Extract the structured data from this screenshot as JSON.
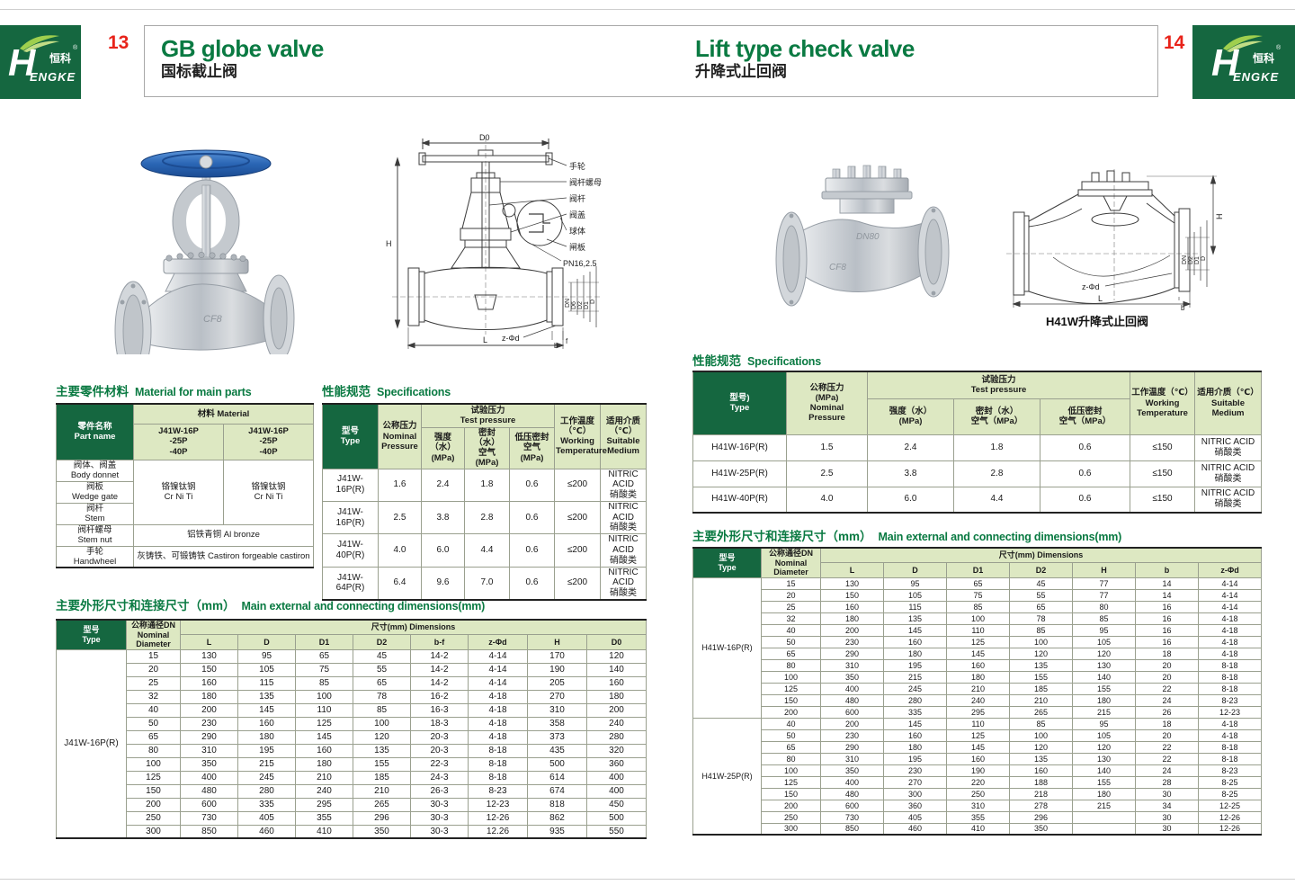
{
  "brand": {
    "h": "H",
    "rest": "ENGKE",
    "cn": "恒科",
    "reg": "®"
  },
  "header": {
    "left_page_no": "13",
    "left_title_en": "GB globe valve",
    "left_title_zh": "国标截止阀",
    "right_page_no": "14",
    "right_title_en": "Lift type check valve",
    "right_title_zh": "升降式止回阀"
  },
  "left_page": {
    "photo_mark": "CF8",
    "diagram": {
      "d0": "D0",
      "h": "H",
      "labels": [
        "手轮",
        "阀杆螺母",
        "阀杆",
        "阀盖",
        "球体",
        "闸板",
        "PN16,2.5"
      ],
      "flange_dims": [
        "DN",
        "D6",
        "D2",
        "D1",
        "D"
      ],
      "z_phi_d": "z-Φd",
      "l": "L",
      "b": "b",
      "f": "f"
    },
    "material_table": {
      "title_zh": "主要零件材料",
      "title_en": "Material for main parts",
      "part_header": "零件名称\nPart name",
      "material_header": "材料 Material",
      "model_cols": [
        "J41W-16P\n-25P\n-40P",
        "J41W-16P\n-25P\n-40P"
      ],
      "rows": [
        "阀体、阀盖\nBody donnet",
        "阀板\nWedge gate",
        "阀杆\nStem",
        "阀杆螺母\nStem nut",
        "手轮\nHandwheel"
      ],
      "material_cols": [
        "铬镍钛钢\nCr Ni Ti",
        "铬镍钛钢\nCr Ni Ti"
      ],
      "stem_nut_material": "铝铁青铜 Al bronze",
      "handwheel_material": "灰铸铁、可锻铸铁 Castiron forgeable castiron"
    },
    "spec_table": {
      "title_zh": "性能规范",
      "title_en": "Specifications",
      "h_type": "型号\nType",
      "h_nominal": "公称压力\nNominal\nPressure",
      "h_test": "试验压力\nTest pressure",
      "h_strength": "强度（水）\n(MPa)",
      "h_seal": "密封（水）\n空气 (MPa)",
      "h_low": "低压密封\n空气 (MPa)",
      "h_temp": "工作温度\n（℃）\nWorking\nTemperature",
      "h_medium": "适用介质\n（℃）\nSuitable\nMedium",
      "rows": [
        [
          "J41W-16P(R)",
          "1.6",
          "2.4",
          "1.8",
          "0.6",
          "≤200",
          "NITRIC ACID\n硝酸类"
        ],
        [
          "J41W-16P(R)",
          "2.5",
          "3.8",
          "2.8",
          "0.6",
          "≤200",
          "NITRIC ACID\n硝酸类"
        ],
        [
          "J41W-40P(R)",
          "4.0",
          "6.0",
          "4.4",
          "0.6",
          "≤200",
          "NITRIC ACID\n硝酸类"
        ],
        [
          "J41W-64P(R)",
          "6.4",
          "9.6",
          "7.0",
          "0.6",
          "≤200",
          "NITRIC ACID\n硝酸类"
        ]
      ]
    },
    "dim_table": {
      "title_zh": "主要外形尺寸和连接尺寸（mm）",
      "title_en": "Main external and connecting dimensions(mm)",
      "h_type": "型号\nType",
      "h_dn": "公称通径DN\nNominal\nDiameter",
      "h_dims": "尺寸(mm) Dimensions",
      "cols": [
        "L",
        "D",
        "D1",
        "D2",
        "b-f",
        "z-Φd",
        "H",
        "D0"
      ],
      "type": "J41W-16P(R)",
      "rows": [
        [
          "15",
          "130",
          "95",
          "65",
          "45",
          "14-2",
          "4-14",
          "170",
          "120"
        ],
        [
          "20",
          "150",
          "105",
          "75",
          "55",
          "14-2",
          "4-14",
          "190",
          "140"
        ],
        [
          "25",
          "160",
          "115",
          "85",
          "65",
          "14-2",
          "4-14",
          "205",
          "160"
        ],
        [
          "32",
          "180",
          "135",
          "100",
          "78",
          "16-2",
          "4-18",
          "270",
          "180"
        ],
        [
          "40",
          "200",
          "145",
          "110",
          "85",
          "16-3",
          "4-18",
          "310",
          "200"
        ],
        [
          "50",
          "230",
          "160",
          "125",
          "100",
          "18-3",
          "4-18",
          "358",
          "240"
        ],
        [
          "65",
          "290",
          "180",
          "145",
          "120",
          "20-3",
          "4-18",
          "373",
          "280"
        ],
        [
          "80",
          "310",
          "195",
          "160",
          "135",
          "20-3",
          "8-18",
          "435",
          "320"
        ],
        [
          "100",
          "350",
          "215",
          "180",
          "155",
          "22-3",
          "8-18",
          "500",
          "360"
        ],
        [
          "125",
          "400",
          "245",
          "210",
          "185",
          "24-3",
          "8-18",
          "614",
          "400"
        ],
        [
          "150",
          "480",
          "280",
          "240",
          "210",
          "26-3",
          "8-23",
          "674",
          "400"
        ],
        [
          "200",
          "600",
          "335",
          "295",
          "265",
          "30-3",
          "12-23",
          "818",
          "450"
        ],
        [
          "250",
          "730",
          "405",
          "355",
          "296",
          "30-3",
          "12-26",
          "862",
          "500"
        ],
        [
          "300",
          "850",
          "460",
          "410",
          "350",
          "30-3",
          "12.26",
          "935",
          "550"
        ]
      ]
    }
  },
  "right_page": {
    "photo_marks": [
      "DN80",
      "CF8"
    ],
    "diagram": {
      "h": "H",
      "flange_dims": [
        "DN",
        "D2",
        "D1",
        "D"
      ],
      "z_phi_d": "z-Φd",
      "l": "L",
      "b": "b",
      "caption": "H41W升降式止回阀"
    },
    "spec_table": {
      "title_zh": "性能规范",
      "title_en": "Specifications",
      "h_type": "型号)\nType",
      "h_nominal": "公称压力\n(MPa)\nNominal\nPressure",
      "h_test": "试验压力\nTest pressure",
      "h_strength": "强度（水）\n(MPa)",
      "h_seal": "密封（水）\n空气（MPa）",
      "h_low": "低压密封\n空气（MPa）",
      "h_temp": "工作温度（℃）\nWorking\nTemperature",
      "h_medium": "适用介质（℃）\nSuitable\nMedium",
      "rows": [
        [
          "H41W-16P(R)",
          "1.5",
          "2.4",
          "1.8",
          "0.6",
          "≤150",
          "NITRIC ACID\n硝酸类"
        ],
        [
          "H41W-25P(R)",
          "2.5",
          "3.8",
          "2.8",
          "0.6",
          "≤150",
          "NITRIC ACID\n硝酸类"
        ],
        [
          "H41W-40P(R)",
          "4.0",
          "6.0",
          "4.4",
          "0.6",
          "≤150",
          "NITRIC ACID\n硝酸类"
        ]
      ]
    },
    "dim_table": {
      "title_zh": "主要外形尺寸和连接尺寸（mm）",
      "title_en": "Main external and connecting dimensions(mm)",
      "h_type": "型号\nType",
      "h_dn": "公称通径DN\nNominal\nDiameter",
      "h_dims": "尺寸(mm) Dimensions",
      "cols": [
        "L",
        "D",
        "D1",
        "D2",
        "H",
        "b",
        "z-Φd"
      ],
      "sections": [
        {
          "type": "H41W-16P(R)",
          "rows": [
            [
              "15",
              "130",
              "95",
              "65",
              "45",
              "77",
              "14",
              "4-14"
            ],
            [
              "20",
              "150",
              "105",
              "75",
              "55",
              "77",
              "14",
              "4-14"
            ],
            [
              "25",
              "160",
              "115",
              "85",
              "65",
              "80",
              "16",
              "4-14"
            ],
            [
              "32",
              "180",
              "135",
              "100",
              "78",
              "85",
              "16",
              "4-18"
            ],
            [
              "40",
              "200",
              "145",
              "110",
              "85",
              "95",
              "16",
              "4-18"
            ],
            [
              "50",
              "230",
              "160",
              "125",
              "100",
              "105",
              "16",
              "4-18"
            ],
            [
              "65",
              "290",
              "180",
              "145",
              "120",
              "120",
              "18",
              "4-18"
            ],
            [
              "80",
              "310",
              "195",
              "160",
              "135",
              "130",
              "20",
              "8-18"
            ],
            [
              "100",
              "350",
              "215",
              "180",
              "155",
              "140",
              "20",
              "8-18"
            ],
            [
              "125",
              "400",
              "245",
              "210",
              "185",
              "155",
              "22",
              "8-18"
            ],
            [
              "150",
              "480",
              "280",
              "240",
              "210",
              "180",
              "24",
              "8-23"
            ],
            [
              "200",
              "600",
              "335",
              "295",
              "265",
              "215",
              "26",
              "12-23"
            ]
          ]
        },
        {
          "type": "H41W-25P(R)",
          "rows": [
            [
              "40",
              "200",
              "145",
              "110",
              "85",
              "95",
              "18",
              "4-18"
            ],
            [
              "50",
              "230",
              "160",
              "125",
              "100",
              "105",
              "20",
              "4-18"
            ],
            [
              "65",
              "290",
              "180",
              "145",
              "120",
              "120",
              "22",
              "8-18"
            ],
            [
              "80",
              "310",
              "195",
              "160",
              "135",
              "130",
              "22",
              "8-18"
            ],
            [
              "100",
              "350",
              "230",
              "190",
              "160",
              "140",
              "24",
              "8-23"
            ],
            [
              "125",
              "400",
              "270",
              "220",
              "188",
              "155",
              "28",
              "8-25"
            ],
            [
              "150",
              "480",
              "300",
              "250",
              "218",
              "180",
              "30",
              "8-25"
            ],
            [
              "200",
              "600",
              "360",
              "310",
              "278",
              "215",
              "34",
              "12-25"
            ],
            [
              "250",
              "730",
              "405",
              "355",
              "296",
              "",
              "30",
              "12-26"
            ],
            [
              "300",
              "850",
              "460",
              "410",
              "350",
              "",
              "30",
              "12-26"
            ]
          ]
        }
      ]
    }
  }
}
